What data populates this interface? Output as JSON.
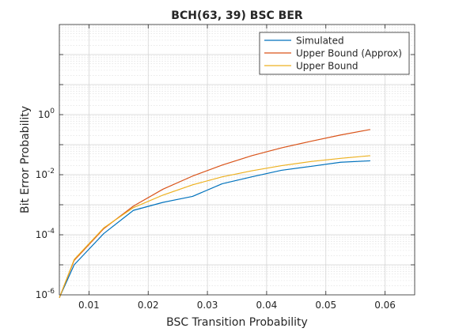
{
  "chart_data": {
    "type": "line",
    "title": "BCH(63, 39) BSC BER",
    "xlabel": "BSC Transition Probability",
    "ylabel": "Bit Error Probability",
    "xlim": [
      0.005,
      0.065
    ],
    "ylim": [
      1e-06,
      1000
    ],
    "y_scale": "log",
    "grid": true,
    "minor_grid": true,
    "legend_position": "top-right",
    "x_ticks": [
      0.01,
      0.02,
      0.03,
      0.04,
      0.05,
      0.06
    ],
    "x_tick_labels": [
      "0.01",
      "0.02",
      "0.03",
      "0.04",
      "0.05",
      "0.06"
    ],
    "y_ticks": [
      {
        "value": 1e-06,
        "base": "10",
        "exp": "-6"
      },
      {
        "value": 0.0001,
        "base": "10",
        "exp": "-4"
      },
      {
        "value": 0.01,
        "base": "10",
        "exp": "-2"
      },
      {
        "value": 1,
        "base": "10",
        "exp": "0"
      }
    ],
    "series": [
      {
        "name": "Simulated",
        "color": "#0072BD",
        "x": [
          0.005,
          0.0075,
          0.0125,
          0.0175,
          0.0225,
          0.0275,
          0.0325,
          0.0375,
          0.0425,
          0.0475,
          0.0525,
          0.0575
        ],
        "y": [
          8e-07,
          1e-05,
          0.00011,
          0.00065,
          0.0012,
          0.0019,
          0.005,
          0.0085,
          0.014,
          0.019,
          0.026,
          0.029
        ]
      },
      {
        "name": "Upper Bound (Approx)",
        "color": "#D95319",
        "x": [
          0.005,
          0.0075,
          0.0125,
          0.0175,
          0.0225,
          0.0275,
          0.0325,
          0.0375,
          0.0425,
          0.0475,
          0.0525,
          0.0575
        ],
        "y": [
          8e-07,
          1.4e-05,
          0.00016,
          0.0009,
          0.0033,
          0.009,
          0.021,
          0.043,
          0.078,
          0.13,
          0.21,
          0.32
        ]
      },
      {
        "name": "Upper Bound",
        "color": "#EDB120",
        "x": [
          0.005,
          0.0075,
          0.0125,
          0.0175,
          0.0225,
          0.0275,
          0.0325,
          0.0375,
          0.0425,
          0.0475,
          0.0525,
          0.0575
        ],
        "y": [
          8e-07,
          1.5e-05,
          0.00017,
          0.0008,
          0.0021,
          0.0046,
          0.0085,
          0.0135,
          0.02,
          0.0275,
          0.035,
          0.043
        ]
      }
    ]
  }
}
